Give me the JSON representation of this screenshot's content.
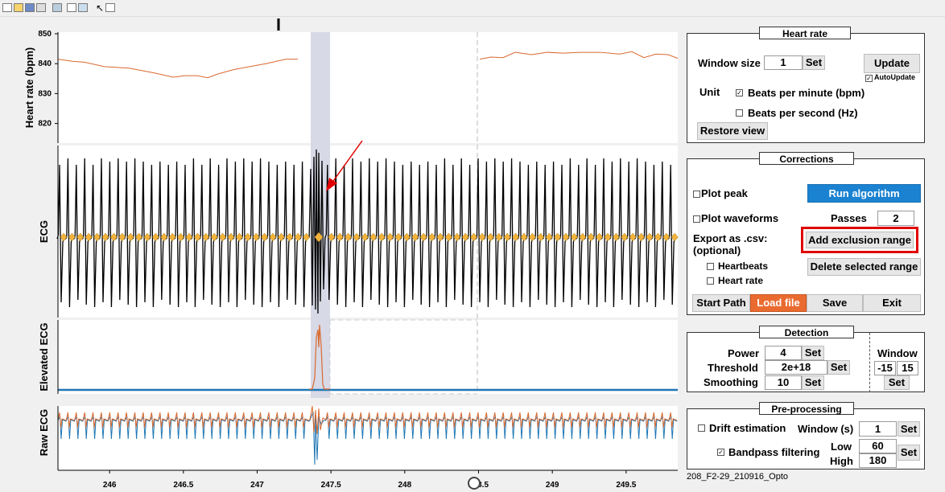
{
  "colors": {
    "hr_line": "#d9692f",
    "ecg_line": "#000000",
    "peak_marker": "#f2b33b",
    "elevated_line": "#d9692f",
    "baseline_line": "#1f77b4",
    "raw_orange": "#d9692f",
    "raw_blue": "#1f77b4",
    "selection": "#d7d9e6",
    "run_btn": "#1a82d1",
    "load_btn": "#ea6b30",
    "highlight_box": "#e00000",
    "arrow": "#e00000"
  },
  "toolbar": {
    "icons": [
      "new-file-icon",
      "open-folder-icon",
      "save-icon",
      "print-icon",
      "zoom-icon",
      "copy-icon",
      "properties-icon",
      "cursor-icon",
      "layout-icon"
    ]
  },
  "axes": {
    "heart_rate": {
      "ylabel": "Heart rate (bpm)",
      "yticks": [
        "850",
        "840",
        "830",
        "820"
      ]
    },
    "ecg": {
      "ylabel": "ECG"
    },
    "elevated": {
      "ylabel": "Elevated ECG"
    },
    "raw": {
      "ylabel": "Raw ECG"
    },
    "xticks": [
      "246",
      "246.5",
      "247",
      "247.5",
      "248",
      "248.5",
      "249",
      "249.5"
    ],
    "xlim": [
      245.65,
      249.85
    ]
  },
  "heart_rate_panel": {
    "title": "Heart rate",
    "window_size_label": "Window size",
    "window_size_value": "1",
    "set_label": "Set",
    "update_label": "Update",
    "autoupdate_label": "AutoUpdate",
    "unit_label": "Unit",
    "bpm_label": "Beats per minute (bpm)",
    "bps_label": "Beats per second (Hz)",
    "restore_label": "Restore view"
  },
  "corrections_panel": {
    "title": "Corrections",
    "plot_peak_label": "Plot peak",
    "run_label": "Run algorithm",
    "plot_waveforms_label": "Plot waveforms",
    "passes_label": "Passes",
    "passes_value": "2",
    "export_label_1": "Export as .csv:",
    "export_label_2": "(optional)",
    "add_exclusion_label": "Add exclusion range",
    "heartbeats_label": "Heartbeats",
    "delete_range_label": "Delete selected range",
    "heart_rate_label": "Heart rate",
    "start_path_label": "Start Path",
    "load_file_label": "Load file",
    "save_label": "Save",
    "exit_label": "Exit"
  },
  "detection_panel": {
    "title": "Detection",
    "power_label": "Power",
    "power_value": "4",
    "threshold_label": "Threshold",
    "threshold_value": "2e+18",
    "smoothing_label": "Smoothing",
    "smoothing_value": "10",
    "set_label": "Set",
    "window_label": "Window",
    "window_min": "-15",
    "window_max": "15"
  },
  "preprocessing_panel": {
    "title": "Pre-processing",
    "drift_label": "Drift estimation",
    "window_s_label": "Window (s)",
    "window_s_value": "1",
    "bandpass_label": "Bandpass filtering",
    "low_label": "Low",
    "low_value": "60",
    "high_label": "High",
    "high_value": "180",
    "set_label": "Set"
  },
  "filename": "208_F2-29_210916_Opto"
}
